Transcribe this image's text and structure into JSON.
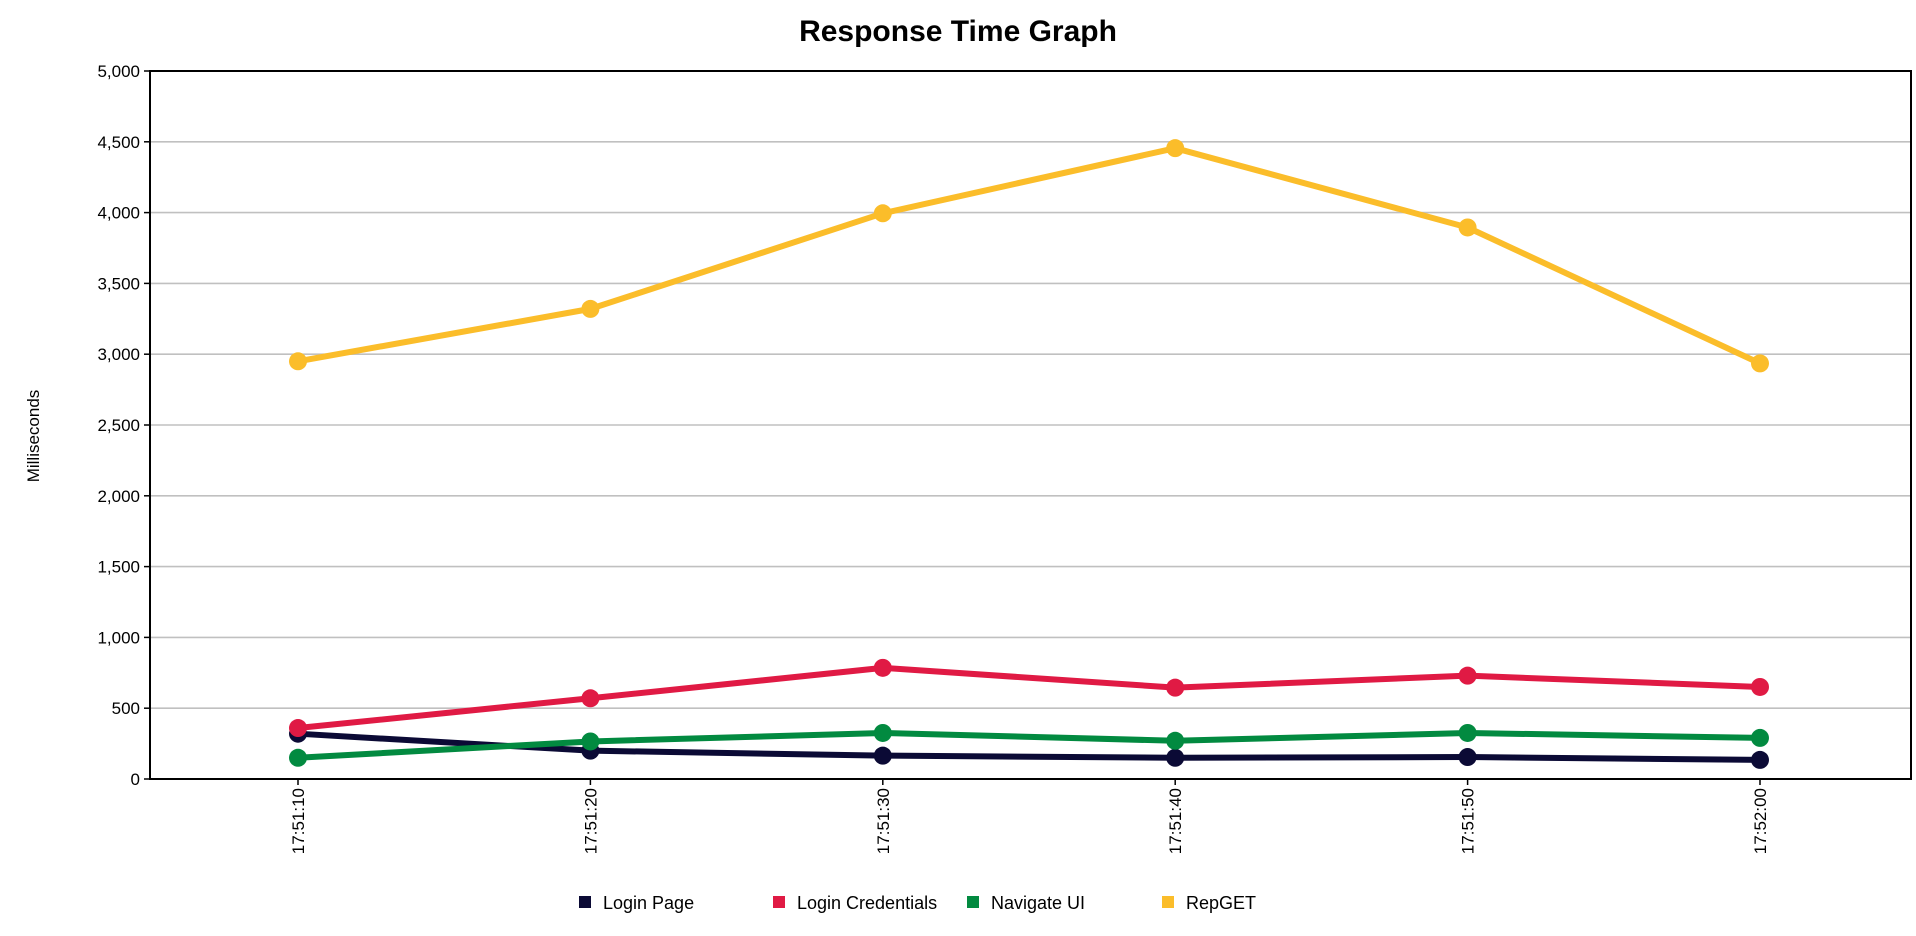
{
  "chart_data": {
    "type": "line",
    "title": "Response Time Graph",
    "xlabel": "",
    "ylabel": "Milliseconds",
    "x": [
      "17:51:10",
      "17:51:20",
      "17:51:30",
      "17:51:40",
      "17:51:50",
      "17:52:00"
    ],
    "ylim": [
      0,
      5000
    ],
    "yticks": [
      0,
      500,
      1000,
      1500,
      2000,
      2500,
      3000,
      3500,
      4000,
      4500,
      5000
    ],
    "ytick_labels": [
      "0",
      "500",
      "1,000",
      "1,500",
      "2,000",
      "2,500",
      "3,000",
      "3,500",
      "4,000",
      "4,500",
      "5,000"
    ],
    "grid": true,
    "legend_position": "bottom",
    "series": [
      {
        "name": "Login Page",
        "color": "#0b0a35",
        "values": [
          320,
          200,
          165,
          150,
          155,
          135
        ]
      },
      {
        "name": "Login Credentials",
        "color": "#e01a44",
        "values": [
          360,
          570,
          785,
          645,
          730,
          650
        ]
      },
      {
        "name": "Navigate UI",
        "color": "#028a40",
        "values": [
          150,
          265,
          325,
          270,
          325,
          290
        ]
      },
      {
        "name": "RepGET",
        "color": "#fbbd2a",
        "values": [
          2950,
          3320,
          3995,
          4455,
          3895,
          2935
        ]
      }
    ]
  }
}
